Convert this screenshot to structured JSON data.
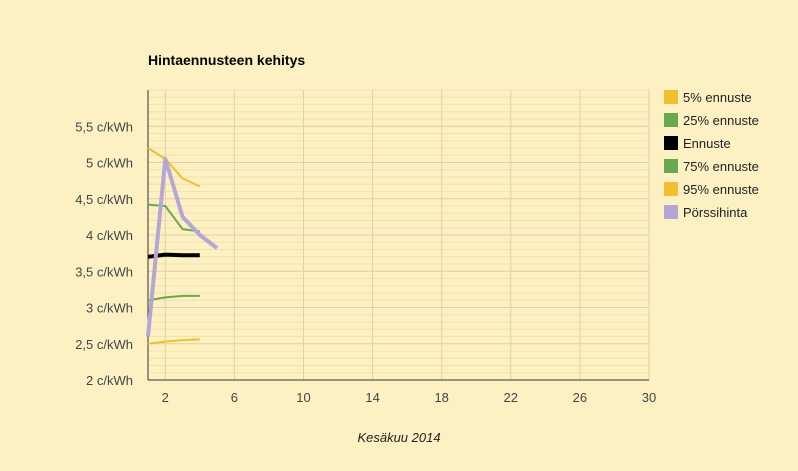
{
  "chart_data": {
    "type": "line",
    "title": "Hintaennusteen kehitys",
    "xlabel": "Kesäkuu 2014",
    "ylabel": "",
    "xlim": [
      1,
      30
    ],
    "ylim": [
      2,
      6
    ],
    "x_ticks": [
      2,
      6,
      10,
      14,
      18,
      22,
      26,
      30
    ],
    "y_ticks": [
      {
        "value": 2,
        "label": "2 c/kWh"
      },
      {
        "value": 2.5,
        "label": "2,5 c/kWh"
      },
      {
        "value": 3,
        "label": "3 c/kWh"
      },
      {
        "value": 3.5,
        "label": "3,5 c/kWh"
      },
      {
        "value": 4,
        "label": "4 c/kWh"
      },
      {
        "value": 4.5,
        "label": "4,5 c/kWh"
      },
      {
        "value": 5,
        "label": "5 c/kWh"
      },
      {
        "value": 5.5,
        "label": "5,5 c/kWh"
      }
    ],
    "grid": true,
    "legend_position": "right",
    "series": [
      {
        "name": "5% ennuste",
        "color": "#f0c030",
        "width": 2,
        "x": [
          1,
          2,
          3,
          4
        ],
        "y": [
          5.2,
          5.05,
          4.78,
          4.67
        ]
      },
      {
        "name": "25% ennuste",
        "color": "#6aa84f",
        "width": 2,
        "x": [
          1,
          2,
          3,
          4
        ],
        "y": [
          4.42,
          4.4,
          4.08,
          4.05
        ]
      },
      {
        "name": "Ennuste",
        "color": "#000000",
        "width": 4,
        "x": [
          1,
          2,
          3,
          4
        ],
        "y": [
          3.7,
          3.73,
          3.72,
          3.72
        ]
      },
      {
        "name": "75% ennuste",
        "color": "#6aa84f",
        "width": 2,
        "x": [
          1,
          2,
          3,
          4
        ],
        "y": [
          3.1,
          3.14,
          3.16,
          3.16
        ]
      },
      {
        "name": "95% ennuste",
        "color": "#f0c030",
        "width": 2,
        "x": [
          1,
          2,
          3,
          4
        ],
        "y": [
          2.5,
          2.53,
          2.55,
          2.56
        ]
      },
      {
        "name": "Pörssihinta",
        "color": "#b4a7d6",
        "width": 4,
        "x": [
          1,
          2,
          3,
          4,
          5
        ],
        "y": [
          2.6,
          5.05,
          4.25,
          4.0,
          3.82
        ]
      }
    ]
  }
}
